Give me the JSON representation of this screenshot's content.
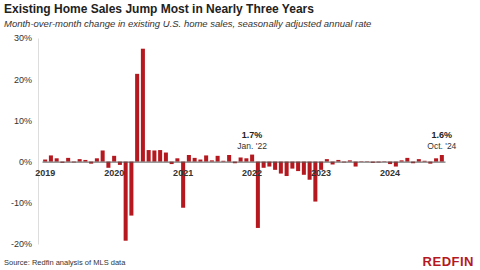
{
  "chart_data": {
    "type": "bar",
    "title": "Existing Home Sales Jump Most in Nearly Three Years",
    "subtitle": "Month-over-month change in existing U.S. home sales, seasonally adjusted annual rate",
    "source": "Source: Redfin analysis of MLS data",
    "brand": "REDFIN",
    "color": "#b5191f",
    "grid": false,
    "categories": [
      "2019",
      null,
      null,
      null,
      null,
      null,
      null,
      null,
      null,
      null,
      null,
      null,
      "2020",
      null,
      null,
      null,
      null,
      null,
      null,
      null,
      null,
      null,
      null,
      null,
      "2021",
      null,
      null,
      null,
      null,
      null,
      null,
      null,
      null,
      null,
      null,
      null,
      "2022",
      null,
      null,
      null,
      null,
      null,
      null,
      null,
      null,
      null,
      null,
      null,
      "2023",
      null,
      null,
      null,
      null,
      null,
      null,
      null,
      null,
      null,
      null,
      null,
      "2024",
      null,
      null,
      null,
      null,
      null,
      null,
      null,
      null,
      null
    ],
    "values": [
      0.5,
      1.5,
      0.8,
      -0.3,
      0.9,
      -0.2,
      0.6,
      0.4,
      -0.5,
      0.8,
      2.7,
      -1.5,
      1.4,
      -0.8,
      -19.2,
      -13.1,
      21.3,
      27.4,
      2.8,
      2.7,
      2.8,
      2.2,
      -0.6,
      0.8,
      -11.2,
      1.6,
      0.9,
      0.5,
      1.5,
      0.3,
      1.4,
      0.2,
      1.6,
      -0.4,
      1.0,
      0.8,
      1.7,
      -16.1,
      -1.5,
      -1.2,
      -2.0,
      -2.9,
      -3.5,
      -1.7,
      -2.3,
      -3.2,
      -4.4,
      -9.7,
      -2.0,
      0.6,
      -0.7,
      0.4,
      -0.2,
      0.3,
      -1.2,
      0.1,
      -0.1,
      -0.3,
      -0.2,
      0.1,
      -0.6,
      -1.2,
      0.3,
      0.9,
      -0.4,
      0.6,
      0.2,
      -0.5,
      0.8,
      1.6
    ],
    "ylim": [
      -20,
      30
    ],
    "yticks": [
      {
        "value": -20,
        "label": "-20%"
      },
      {
        "value": -10,
        "label": "-10%"
      },
      {
        "value": 0,
        "label": "0%"
      },
      {
        "value": 10,
        "label": "10%"
      },
      {
        "value": 20,
        "label": "20%"
      },
      {
        "value": 30,
        "label": "30%"
      }
    ],
    "annotations": [
      {
        "index": 36,
        "value": 1.7,
        "label": "1.7%",
        "date": "Jan. '22"
      },
      {
        "index": 69,
        "value": 1.6,
        "label": "1.6%",
        "date": "Oct. '24"
      }
    ]
  }
}
